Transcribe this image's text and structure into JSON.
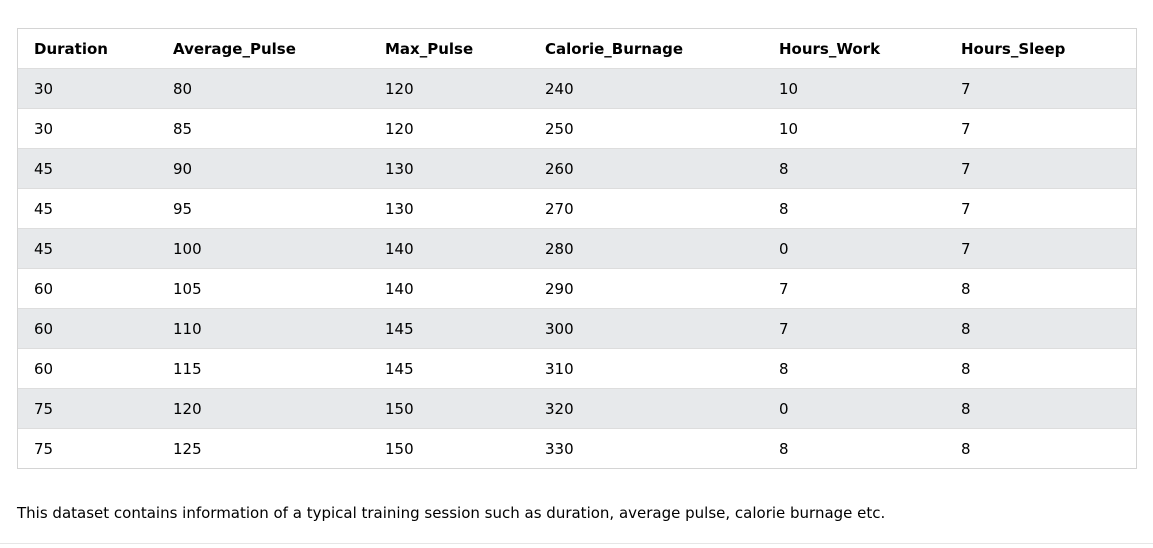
{
  "table": {
    "columns": [
      "Duration",
      "Average_Pulse",
      "Max_Pulse",
      "Calorie_Burnage",
      "Hours_Work",
      "Hours_Sleep"
    ],
    "rows": [
      [
        "30",
        "80",
        "120",
        "240",
        "10",
        "7"
      ],
      [
        "30",
        "85",
        "120",
        "250",
        "10",
        "7"
      ],
      [
        "45",
        "90",
        "130",
        "260",
        "8",
        "7"
      ],
      [
        "45",
        "95",
        "130",
        "270",
        "8",
        "7"
      ],
      [
        "45",
        "100",
        "140",
        "280",
        "0",
        "7"
      ],
      [
        "60",
        "105",
        "140",
        "290",
        "7",
        "8"
      ],
      [
        "60",
        "110",
        "145",
        "300",
        "7",
        "8"
      ],
      [
        "60",
        "115",
        "145",
        "310",
        "8",
        "8"
      ],
      [
        "75",
        "120",
        "150",
        "320",
        "0",
        "8"
      ],
      [
        "75",
        "125",
        "150",
        "330",
        "8",
        "8"
      ]
    ],
    "stripe_color": "#e7e9eb",
    "border_color": "#d4d4d4"
  },
  "description": "This dataset contains information of a typical training session such as duration, average pulse, calorie burnage etc."
}
